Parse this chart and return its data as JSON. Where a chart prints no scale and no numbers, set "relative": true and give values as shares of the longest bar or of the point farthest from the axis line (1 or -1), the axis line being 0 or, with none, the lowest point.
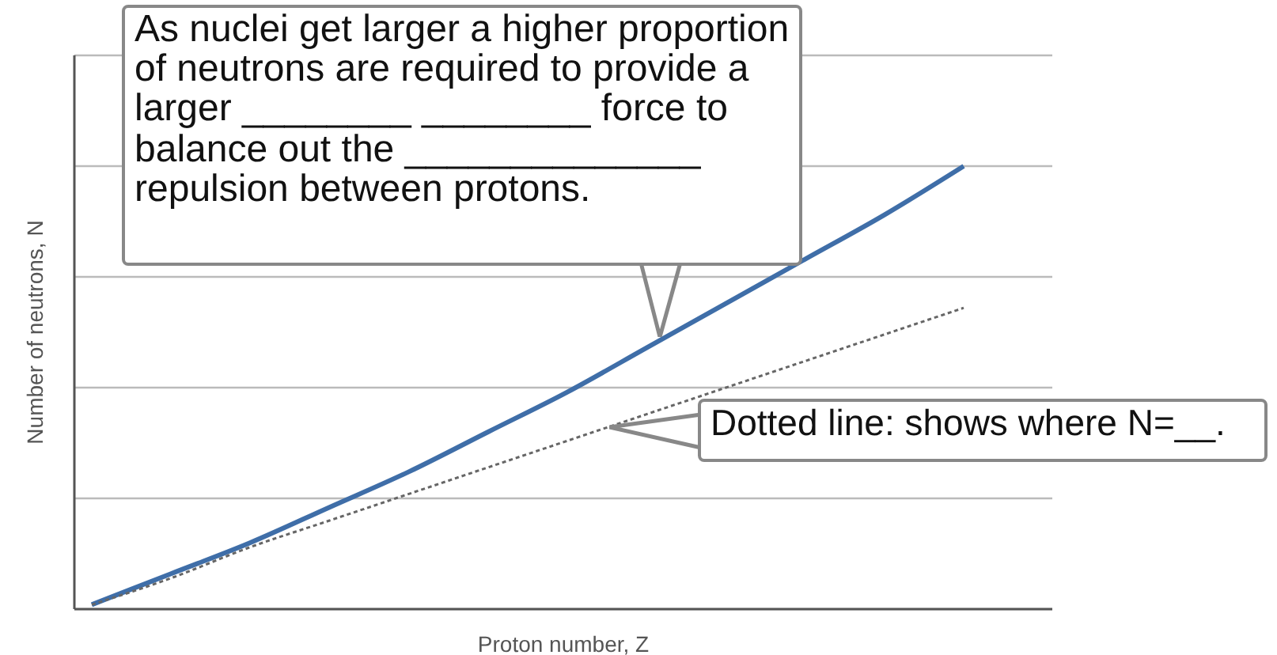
{
  "chart_data": {
    "type": "line",
    "xlabel": "Proton number, Z",
    "ylabel": "Number of neutrons, N",
    "relative": true,
    "grid": "y",
    "legend": false,
    "categories": [
      null,
      null,
      null,
      null,
      null,
      null,
      null,
      null,
      null,
      null,
      null,
      null
    ],
    "series": [
      {
        "color": "#3f6ea8",
        "line_style": "solid",
        "values": [
          0.01,
          0.08,
          0.15,
          0.23,
          0.31,
          0.4,
          0.49,
          0.59,
          0.69,
          0.79,
          0.89,
          1
        ]
      },
      {
        "color": "#666666",
        "line_style": "dotted",
        "values": [
          0.01,
          0.07,
          0.14,
          0.2,
          0.26,
          0.32,
          0.38,
          0.44,
          0.5,
          0.56,
          0.62,
          0.68
        ]
      }
    ],
    "annotations": [
      "As nuclei get larger a higher proportion of neutrons are required to provide a larger ________  ________ force to balance out the ______________ repulsion between protons.",
      "Dotted line: shows where N=__."
    ]
  }
}
